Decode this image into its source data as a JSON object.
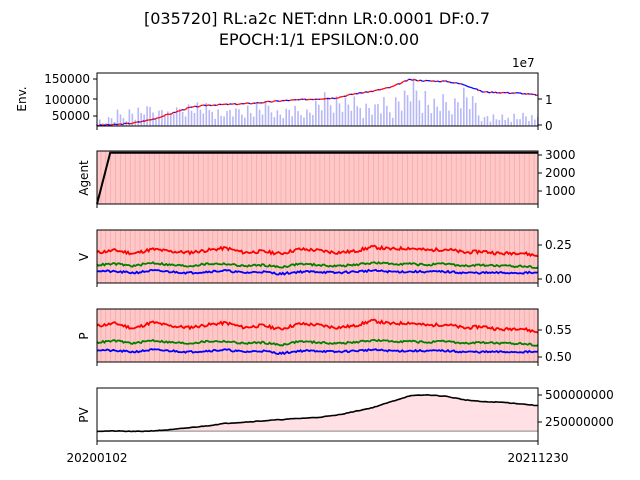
{
  "title_line1": "[035720] RL:a2c NET:dnn LR:0.0001 DF:0.7",
  "title_line2": "EPOCH:1/1 EPSILON:0.00",
  "colors": {
    "candle_up": "#ff0000",
    "candle_down": "#0000ff",
    "volume": "#7b7bf0",
    "agent_line": "#000000",
    "hold_band": "#ffc8c8",
    "value_high": "#ff0000",
    "value_mid": "#008000",
    "value_low": "#0000ff",
    "pv_fill": "#ffe0e4",
    "pv_line": "#000000"
  },
  "chart_data": [
    {
      "type": "line",
      "panel": "env",
      "ylabel": "Env.",
      "left_ticks": [
        "50000",
        "100000",
        "150000"
      ],
      "right_ticks": [
        "0",
        "1"
      ],
      "right_offset_label": "1e7",
      "ylim": [
        25000,
        185000
      ],
      "y2lim": [
        0,
        20000000
      ],
      "series": [
        {
          "values": [
            27000,
            29000,
            34000,
            45000,
            62000,
            80000,
            88000,
            90000,
            92000,
            96000,
            101000,
            104000,
            107000,
            110000,
            122000,
            130000,
            142000,
            165000,
            161000,
            160000,
            150000,
            128000,
            126000,
            124000,
            118000
          ]
        }
      ],
      "volume_peaks": [
        2000000,
        4000000,
        6000000,
        8000000,
        6000000,
        9000000,
        8000000,
        6000000,
        7000000,
        9000000,
        6000000,
        7000000,
        8000000,
        13000000,
        9000000,
        9000000,
        8000000,
        16000000,
        12000000,
        9000000,
        15000000,
        5000000,
        4000000,
        4000000,
        4000000
      ]
    },
    {
      "type": "line",
      "panel": "agent",
      "ylabel": "Agent",
      "ticks": [
        "1000",
        "2000",
        "3000"
      ],
      "ylim": [
        0,
        3100
      ],
      "x": [
        0,
        0.03,
        1
      ],
      "series": [
        {
          "values": [
            0,
            3000,
            3000
          ]
        }
      ]
    },
    {
      "type": "line",
      "panel": "value",
      "ylabel": "V",
      "ticks": [
        "0.00",
        "0.25"
      ],
      "ylim": [
        -0.05,
        0.42
      ],
      "series": [
        {
          "values": [
            0.22,
            0.24,
            0.21,
            0.25,
            0.23,
            0.22,
            0.24,
            0.26,
            0.22,
            0.23,
            0.21,
            0.25,
            0.24,
            0.22,
            0.23,
            0.27,
            0.25,
            0.26,
            0.24,
            0.25,
            0.22,
            0.23,
            0.21,
            0.22,
            0.19
          ]
        },
        {
          "values": [
            0.11,
            0.12,
            0.1,
            0.13,
            0.11,
            0.1,
            0.12,
            0.12,
            0.1,
            0.11,
            0.09,
            0.12,
            0.11,
            0.1,
            0.11,
            0.13,
            0.12,
            0.12,
            0.11,
            0.12,
            0.1,
            0.11,
            0.1,
            0.1,
            0.09
          ]
        },
        {
          "values": [
            0.06,
            0.05,
            0.04,
            0.06,
            0.05,
            0.04,
            0.05,
            0.06,
            0.04,
            0.05,
            0.03,
            0.05,
            0.05,
            0.04,
            0.05,
            0.06,
            0.05,
            0.05,
            0.05,
            0.05,
            0.04,
            0.04,
            0.04,
            0.04,
            0.04
          ]
        }
      ]
    },
    {
      "type": "line",
      "panel": "policy",
      "ylabel": "P",
      "ticks": [
        "0.50",
        "0.55"
      ],
      "ylim": [
        0.492,
        0.592
      ],
      "series": [
        {
          "values": [
            0.56,
            0.565,
            0.555,
            0.567,
            0.56,
            0.557,
            0.562,
            0.566,
            0.557,
            0.561,
            0.554,
            0.564,
            0.562,
            0.557,
            0.56,
            0.57,
            0.564,
            0.566,
            0.561,
            0.563,
            0.556,
            0.559,
            0.553,
            0.556,
            0.548
          ]
        },
        {
          "values": [
            0.529,
            0.532,
            0.527,
            0.533,
            0.529,
            0.527,
            0.531,
            0.531,
            0.527,
            0.529,
            0.524,
            0.531,
            0.529,
            0.527,
            0.529,
            0.533,
            0.531,
            0.531,
            0.529,
            0.531,
            0.527,
            0.529,
            0.527,
            0.527,
            0.524
          ]
        },
        {
          "values": [
            0.515,
            0.513,
            0.511,
            0.515,
            0.513,
            0.511,
            0.513,
            0.515,
            0.511,
            0.513,
            0.508,
            0.513,
            0.513,
            0.511,
            0.513,
            0.515,
            0.513,
            0.513,
            0.513,
            0.513,
            0.511,
            0.511,
            0.511,
            0.511,
            0.511
          ]
        }
      ]
    },
    {
      "type": "area",
      "panel": "pv",
      "ylabel": "PV",
      "ticks": [
        "250000000",
        "500000000"
      ],
      "xticks": [
        "20200102",
        "20211230"
      ],
      "ylim": [
        0,
        540000000
      ],
      "baseline": 100000000,
      "series": [
        {
          "values": [
            100000000,
            102000000,
            97000000,
            103000000,
            115000000,
            135000000,
            155000000,
            180000000,
            192000000,
            205000000,
            218000000,
            230000000,
            240000000,
            262000000,
            300000000,
            340000000,
            400000000,
            460000000,
            470000000,
            455000000,
            420000000,
            400000000,
            395000000,
            380000000,
            360000000
          ]
        }
      ]
    }
  ]
}
